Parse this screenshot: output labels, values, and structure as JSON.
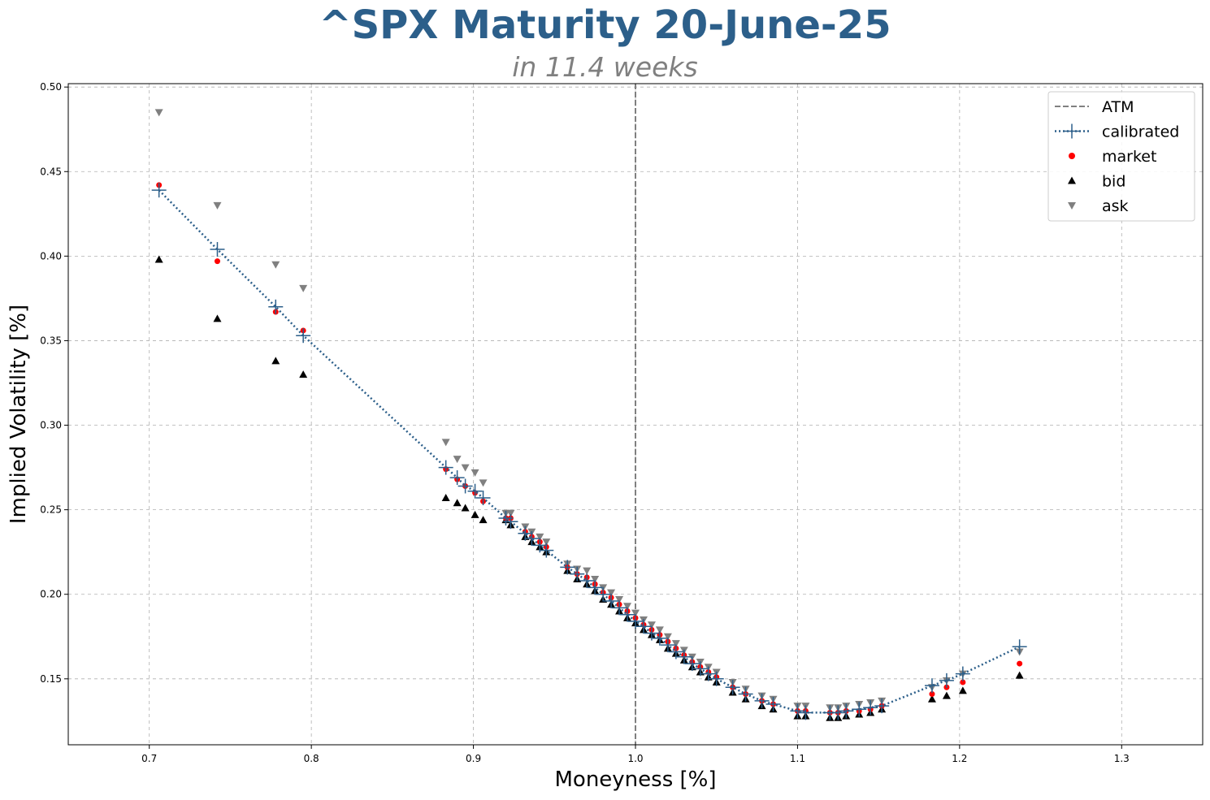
{
  "chart_data": {
    "type": "scatter",
    "title": "^SPX Maturity 20-June-25",
    "subtitle": "in 11.4 weeks",
    "xlabel": "Moneyness [%]",
    "ylabel": "Implied Volatility [%]",
    "xlim": [
      0.65,
      1.35
    ],
    "ylim": [
      0.111,
      0.502
    ],
    "xticks": [
      "0.7",
      "0.8",
      "0.9",
      "1.0",
      "1.1",
      "1.2",
      "1.3"
    ],
    "yticks": [
      "0.15",
      "0.20",
      "0.25",
      "0.30",
      "0.35",
      "0.40",
      "0.45",
      "0.50"
    ],
    "grid": true,
    "legend_position": "upper right",
    "atm": 1.0,
    "colors": {
      "calibrated": "#2c5f8a",
      "market": "#ff0000",
      "bid": "#000000",
      "ask": "#808080",
      "atm": "#808080"
    },
    "series": [
      {
        "name": "ATM",
        "type": "vline"
      },
      {
        "name": "calibrated",
        "type": "line"
      },
      {
        "name": "market",
        "type": "scatter"
      },
      {
        "name": "bid",
        "type": "scatter"
      },
      {
        "name": "ask",
        "type": "scatter"
      }
    ],
    "points": {
      "x": [
        0.706,
        0.742,
        0.778,
        0.795,
        0.883,
        0.89,
        0.895,
        0.901,
        0.906,
        0.92,
        0.923,
        0.932,
        0.936,
        0.941,
        0.945,
        0.958,
        0.964,
        0.97,
        0.975,
        0.98,
        0.985,
        0.99,
        0.995,
        1.0,
        1.005,
        1.01,
        1.015,
        1.02,
        1.025,
        1.03,
        1.035,
        1.04,
        1.045,
        1.05,
        1.06,
        1.068,
        1.078,
        1.085,
        1.1,
        1.105,
        1.12,
        1.125,
        1.13,
        1.138,
        1.145,
        1.152,
        1.183,
        1.192,
        1.202,
        1.237
      ],
      "market": [
        0.442,
        0.397,
        0.367,
        0.356,
        0.274,
        0.268,
        0.264,
        0.26,
        0.255,
        0.245,
        0.245,
        0.237,
        0.234,
        0.231,
        0.228,
        0.216,
        0.212,
        0.21,
        0.206,
        0.201,
        0.198,
        0.194,
        0.19,
        0.186,
        0.182,
        0.179,
        0.176,
        0.172,
        0.168,
        0.164,
        0.16,
        0.157,
        0.154,
        0.151,
        0.145,
        0.141,
        0.137,
        0.135,
        0.131,
        0.131,
        0.13,
        0.13,
        0.131,
        0.131,
        0.132,
        0.134,
        0.141,
        0.145,
        0.148,
        0.159
      ],
      "bid": [
        0.398,
        0.363,
        0.338,
        0.33,
        0.257,
        0.254,
        0.251,
        0.247,
        0.244,
        0.244,
        0.241,
        0.234,
        0.231,
        0.228,
        0.225,
        0.214,
        0.209,
        0.206,
        0.202,
        0.197,
        0.194,
        0.19,
        0.186,
        0.183,
        0.179,
        0.176,
        0.173,
        0.168,
        0.165,
        0.161,
        0.157,
        0.154,
        0.151,
        0.148,
        0.142,
        0.138,
        0.134,
        0.132,
        0.128,
        0.128,
        0.127,
        0.127,
        0.128,
        0.129,
        0.13,
        0.132,
        0.138,
        0.14,
        0.143,
        0.152
      ],
      "ask": [
        0.485,
        0.43,
        0.395,
        0.381,
        0.29,
        0.28,
        0.275,
        0.272,
        0.266,
        0.248,
        0.248,
        0.24,
        0.237,
        0.234,
        0.231,
        0.218,
        0.215,
        0.214,
        0.209,
        0.204,
        0.201,
        0.197,
        0.193,
        0.189,
        0.185,
        0.182,
        0.179,
        0.175,
        0.171,
        0.167,
        0.163,
        0.16,
        0.157,
        0.154,
        0.148,
        0.144,
        0.14,
        0.138,
        0.134,
        0.134,
        0.133,
        0.133,
        0.134,
        0.135,
        0.136,
        0.137,
        0.145,
        0.149,
        0.153,
        0.166
      ],
      "calibrated": [
        0.439,
        0.404,
        0.37,
        0.353,
        0.275,
        0.269,
        0.264,
        0.261,
        0.257,
        0.245,
        0.243,
        0.236,
        0.233,
        0.229,
        0.226,
        0.216,
        0.212,
        0.208,
        0.204,
        0.2,
        0.196,
        0.192,
        0.188,
        0.184,
        0.181,
        0.177,
        0.174,
        0.17,
        0.166,
        0.163,
        0.159,
        0.156,
        0.153,
        0.15,
        0.145,
        0.141,
        0.137,
        0.135,
        0.131,
        0.13,
        0.13,
        0.13,
        0.131,
        0.132,
        0.133,
        0.134,
        0.146,
        0.149,
        0.153,
        0.169
      ]
    }
  }
}
